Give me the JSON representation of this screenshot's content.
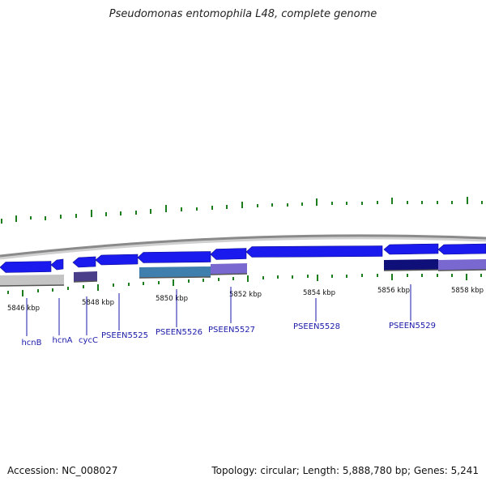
{
  "title": "Pseudomonas entomophila L48, complete genome",
  "footer": {
    "accession": "Accession: NC_008027",
    "summary": "Topology: circular; Length: 5,888,780 bp; Genes: 5,241"
  },
  "colors": {
    "forward_gene": "#1a1aee",
    "backbone": "#8a8a8a",
    "gc_tick": "#1b7d1b",
    "gene_label": "#1a1aaa",
    "track_light_gray": "#c4c4c4",
    "track_slate": "#4a3d8a",
    "track_teal": "#3f7fae",
    "track_lavender": "#7868d0",
    "track_navy": "#0f0f7a"
  },
  "scale_labels": [
    "5846 kbp",
    "5848 kbp",
    "5850 kbp",
    "5852 kbp",
    "5854 kbp",
    "5856 kbp",
    "5858 kbp"
  ],
  "genes": [
    {
      "name": "hcnB"
    },
    {
      "name": "hcnA"
    },
    {
      "name": "cycC"
    },
    {
      "name": "PSEEN5525"
    },
    {
      "name": "PSEEN5526"
    },
    {
      "name": "PSEEN5527"
    },
    {
      "name": "PSEEN5528"
    },
    {
      "name": "PSEEN5529"
    }
  ]
}
